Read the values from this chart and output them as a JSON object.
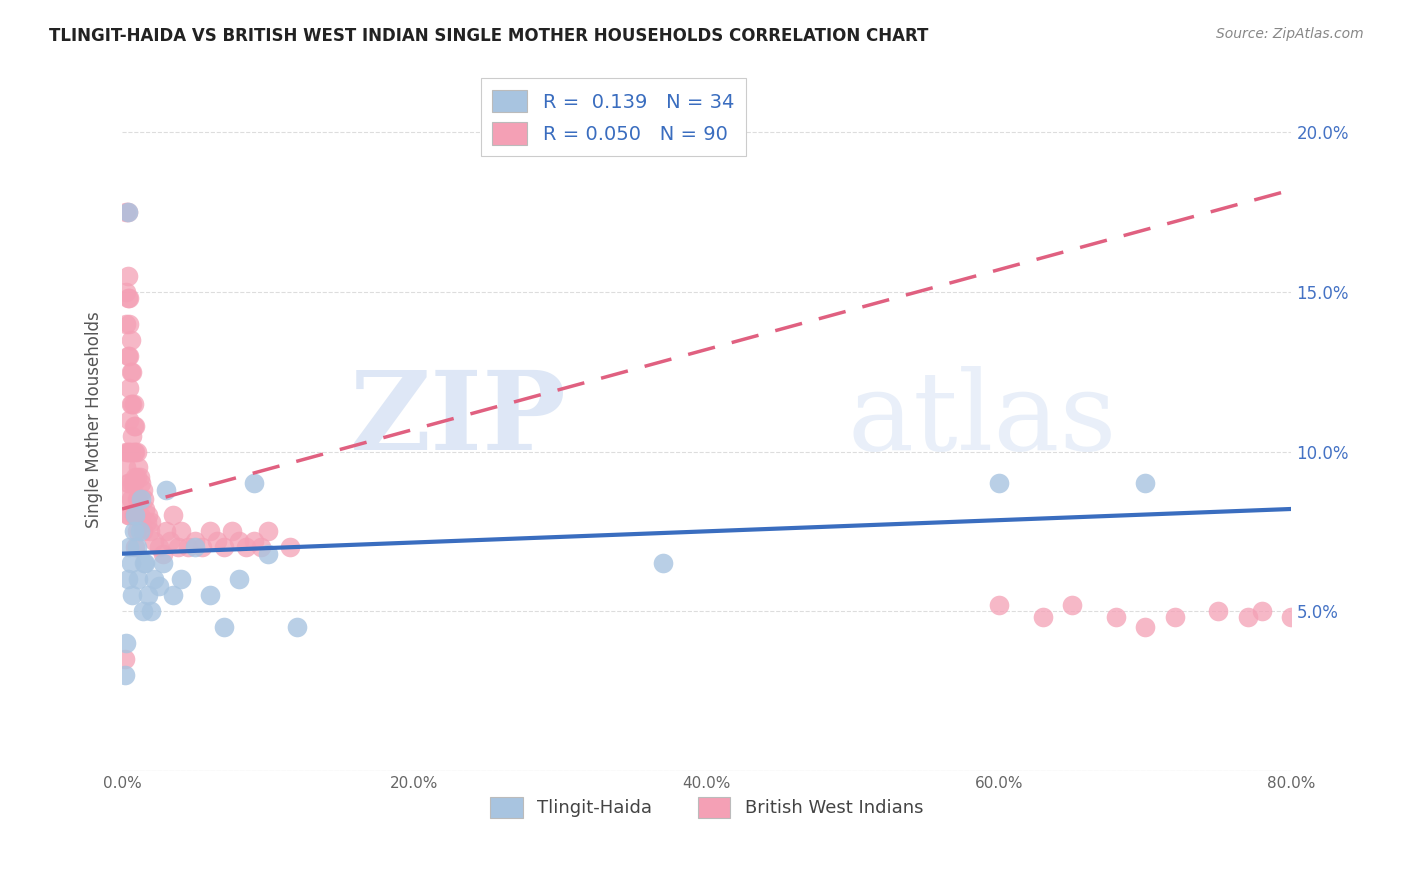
{
  "title": "TLINGIT-HAIDA VS BRITISH WEST INDIAN SINGLE MOTHER HOUSEHOLDS CORRELATION CHART",
  "source": "Source: ZipAtlas.com",
  "ylabel": "Single Mother Households",
  "xlim": [
    0,
    0.8
  ],
  "ylim": [
    0,
    0.22
  ],
  "xticks": [
    0.0,
    0.1,
    0.2,
    0.3,
    0.4,
    0.5,
    0.6,
    0.7,
    0.8
  ],
  "yticks": [
    0.0,
    0.05,
    0.1,
    0.15,
    0.2
  ],
  "xtick_labels": [
    "0.0%",
    "",
    "20.0%",
    "",
    "40.0%",
    "",
    "60.0%",
    "",
    "80.0%"
  ],
  "ytick_labels_right": [
    "",
    "5.0%",
    "10.0%",
    "15.0%",
    "20.0%"
  ],
  "tlingit_R": 0.139,
  "tlingit_N": 34,
  "bwi_R": 0.05,
  "bwi_N": 90,
  "tlingit_color": "#a8c4e0",
  "bwi_color": "#f4a0b5",
  "tlingit_line_color": "#3a6dbf",
  "bwi_line_color": "#e06080",
  "background_color": "#ffffff",
  "grid_color": "#dddddd",
  "watermark_text": "ZIPatlas",
  "tlingit_x": [
    0.002,
    0.003,
    0.004,
    0.004,
    0.005,
    0.006,
    0.007,
    0.008,
    0.009,
    0.01,
    0.011,
    0.012,
    0.013,
    0.014,
    0.015,
    0.016,
    0.018,
    0.02,
    0.022,
    0.025,
    0.028,
    0.03,
    0.035,
    0.04,
    0.05,
    0.06,
    0.07,
    0.08,
    0.09,
    0.1,
    0.12,
    0.37,
    0.6,
    0.7
  ],
  "tlingit_y": [
    0.03,
    0.04,
    0.175,
    0.06,
    0.07,
    0.065,
    0.055,
    0.075,
    0.08,
    0.07,
    0.06,
    0.075,
    0.085,
    0.05,
    0.065,
    0.065,
    0.055,
    0.05,
    0.06,
    0.058,
    0.065,
    0.088,
    0.055,
    0.06,
    0.07,
    0.055,
    0.045,
    0.06,
    0.09,
    0.068,
    0.045,
    0.065,
    0.09,
    0.09
  ],
  "bwi_x": [
    0.002,
    0.003,
    0.003,
    0.003,
    0.003,
    0.003,
    0.003,
    0.004,
    0.004,
    0.004,
    0.004,
    0.004,
    0.004,
    0.004,
    0.005,
    0.005,
    0.005,
    0.005,
    0.005,
    0.005,
    0.005,
    0.005,
    0.006,
    0.006,
    0.006,
    0.006,
    0.006,
    0.007,
    0.007,
    0.007,
    0.007,
    0.008,
    0.008,
    0.008,
    0.008,
    0.008,
    0.009,
    0.009,
    0.009,
    0.009,
    0.009,
    0.01,
    0.01,
    0.01,
    0.01,
    0.011,
    0.011,
    0.012,
    0.012,
    0.013,
    0.013,
    0.014,
    0.014,
    0.015,
    0.016,
    0.017,
    0.018,
    0.019,
    0.02,
    0.022,
    0.025,
    0.028,
    0.03,
    0.033,
    0.035,
    0.038,
    0.04,
    0.045,
    0.05,
    0.055,
    0.06,
    0.065,
    0.07,
    0.075,
    0.08,
    0.085,
    0.09,
    0.095,
    0.1,
    0.115,
    0.6,
    0.63,
    0.65,
    0.68,
    0.7,
    0.72,
    0.75,
    0.77,
    0.78,
    0.8
  ],
  "bwi_y": [
    0.035,
    0.175,
    0.15,
    0.14,
    0.1,
    0.095,
    0.085,
    0.175,
    0.155,
    0.148,
    0.13,
    0.1,
    0.09,
    0.08,
    0.148,
    0.14,
    0.13,
    0.12,
    0.11,
    0.1,
    0.09,
    0.08,
    0.135,
    0.125,
    0.115,
    0.1,
    0.085,
    0.125,
    0.115,
    0.105,
    0.09,
    0.115,
    0.108,
    0.1,
    0.09,
    0.08,
    0.108,
    0.1,
    0.092,
    0.08,
    0.07,
    0.1,
    0.092,
    0.085,
    0.075,
    0.095,
    0.085,
    0.092,
    0.08,
    0.09,
    0.078,
    0.088,
    0.075,
    0.085,
    0.082,
    0.078,
    0.08,
    0.075,
    0.078,
    0.072,
    0.07,
    0.068,
    0.075,
    0.072,
    0.08,
    0.07,
    0.075,
    0.07,
    0.072,
    0.07,
    0.075,
    0.072,
    0.07,
    0.075,
    0.072,
    0.07,
    0.072,
    0.07,
    0.075,
    0.07,
    0.052,
    0.048,
    0.052,
    0.048,
    0.045,
    0.048,
    0.05,
    0.048,
    0.05,
    0.048
  ],
  "tlingit_line_x0": 0.0,
  "tlingit_line_y0": 0.068,
  "tlingit_line_x1": 0.8,
  "tlingit_line_y1": 0.082,
  "bwi_line_x0": 0.0,
  "bwi_line_y0": 0.082,
  "bwi_line_x1": 0.8,
  "bwi_line_y1": 0.182
}
